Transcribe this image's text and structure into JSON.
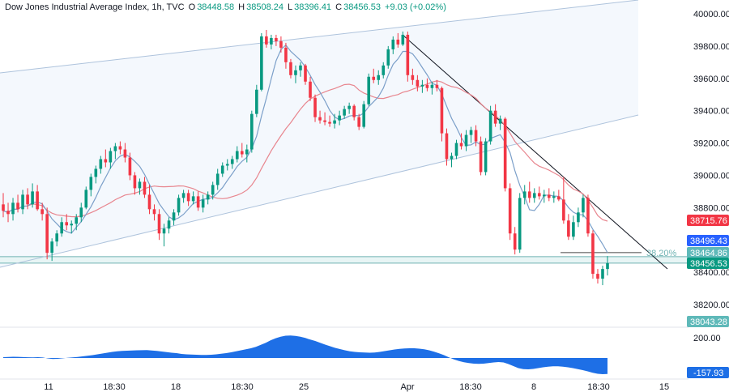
{
  "legend": {
    "symbol": "Dow Jones Industrial Average Index, 1h, TVC",
    "open_label": "O",
    "open": "38448.58",
    "high_label": "H",
    "high": "38508.24",
    "low_label": "L",
    "low": "38396.41",
    "close_label": "C",
    "close": "38456.53",
    "change": "+9.03 (+0.02%)"
  },
  "colors": {
    "up": "#089981",
    "down": "#f23645",
    "fast_ma": "#7b9fc9",
    "slow_ma": "#e8868f",
    "channel": "#aec3dc",
    "fib": "#6fb3b3",
    "histogram": "#1e6fe6"
  },
  "chart_data": {
    "type": "candlestick",
    "title": "Dow Jones Industrial Average Index, 1h, TVC",
    "x_tick_labels": [
      "11",
      "18:30",
      "18",
      "18:30",
      "25",
      "Apr",
      "18:30",
      "8",
      "18:30",
      "15"
    ],
    "y_tick_labels": [
      "40000.00",
      "39800.00",
      "39600.00",
      "39400.00",
      "39200.00",
      "39000.00",
      "38800.00",
      "38400.00",
      "38200.00"
    ],
    "ylim": [
      38000,
      40100
    ],
    "price_tags": [
      {
        "label": "38715.76",
        "value": 38715.76,
        "color": "#f23645"
      },
      {
        "label": "38496.43",
        "value": 38496.43,
        "color": "#2962ff"
      },
      {
        "label": "38464.86",
        "value": 38464.86,
        "color": "#5fb9b9"
      },
      {
        "label": "38456.53",
        "value": 38456.53,
        "color": "#089981"
      },
      {
        "label": "38043.28",
        "value": 38043.28,
        "color": "#5fb9b9"
      }
    ],
    "fib_level": {
      "label": "38.20%",
      "value": 38496.43
    },
    "zone": {
      "upper": 38496.43,
      "lower": 38456.53
    },
    "candles": [
      [
        38820,
        38890,
        38740,
        38780
      ],
      [
        38780,
        38830,
        38710,
        38760
      ],
      [
        38760,
        38860,
        38720,
        38830
      ],
      [
        38830,
        38880,
        38770,
        38790
      ],
      [
        38790,
        38910,
        38760,
        38880
      ],
      [
        38880,
        38920,
        38790,
        38820
      ],
      [
        38820,
        38950,
        38800,
        38900
      ],
      [
        38900,
        38940,
        38780,
        38790
      ],
      [
        38790,
        38830,
        38720,
        38760
      ],
      [
        38760,
        38800,
        38480,
        38520
      ],
      [
        38520,
        38610,
        38470,
        38590
      ],
      [
        38590,
        38660,
        38560,
        38640
      ],
      [
        38640,
        38740,
        38620,
        38710
      ],
      [
        38710,
        38760,
        38660,
        38690
      ],
      [
        38690,
        38720,
        38640,
        38700
      ],
      [
        38700,
        38760,
        38660,
        38740
      ],
      [
        38740,
        38830,
        38710,
        38800
      ],
      [
        38800,
        38930,
        38790,
        38910
      ],
      [
        38910,
        39010,
        38870,
        38990
      ],
      [
        38990,
        39060,
        38950,
        39040
      ],
      [
        39040,
        39120,
        39010,
        39100
      ],
      [
        39100,
        39160,
        39050,
        39080
      ],
      [
        39080,
        39170,
        39040,
        39150
      ],
      [
        39150,
        39200,
        39100,
        39180
      ],
      [
        39180,
        39210,
        39130,
        39160
      ],
      [
        39160,
        39200,
        39080,
        39110
      ],
      [
        39110,
        39140,
        38970,
        39000
      ],
      [
        39000,
        39020,
        38880,
        38920
      ],
      [
        38920,
        38980,
        38880,
        38960
      ],
      [
        38960,
        38990,
        38860,
        38880
      ],
      [
        38880,
        38940,
        38760,
        38790
      ],
      [
        38790,
        38820,
        38720,
        38760
      ],
      [
        38760,
        38790,
        38600,
        38640
      ],
      [
        38640,
        38700,
        38560,
        38670
      ],
      [
        38670,
        38740,
        38640,
        38720
      ],
      [
        38720,
        38790,
        38690,
        38770
      ],
      [
        38770,
        38880,
        38750,
        38860
      ],
      [
        38860,
        38910,
        38830,
        38890
      ],
      [
        38890,
        38910,
        38810,
        38840
      ],
      [
        38840,
        38900,
        38820,
        38870
      ],
      [
        38870,
        38900,
        38780,
        38800
      ],
      [
        38800,
        38880,
        38770,
        38850
      ],
      [
        38850,
        38900,
        38820,
        38880
      ],
      [
        38880,
        38960,
        38850,
        38940
      ],
      [
        38940,
        39040,
        38910,
        39010
      ],
      [
        39010,
        39080,
        38990,
        39060
      ],
      [
        39060,
        39100,
        39030,
        39070
      ],
      [
        39070,
        39120,
        39040,
        39100
      ],
      [
        39100,
        39180,
        39080,
        39150
      ],
      [
        39150,
        39200,
        39110,
        39130
      ],
      [
        39130,
        39190,
        39080,
        39160
      ],
      [
        39160,
        39400,
        39140,
        39380
      ],
      [
        39380,
        39560,
        39360,
        39530
      ],
      [
        39530,
        39880,
        39520,
        39860
      ],
      [
        39860,
        39900,
        39790,
        39810
      ],
      [
        39810,
        39870,
        39780,
        39850
      ],
      [
        39850,
        39870,
        39800,
        39830
      ],
      [
        39830,
        39860,
        39760,
        39790
      ],
      [
        39790,
        39820,
        39660,
        39700
      ],
      [
        39700,
        39720,
        39600,
        39620
      ],
      [
        39620,
        39680,
        39570,
        39650
      ],
      [
        39650,
        39700,
        39610,
        39680
      ],
      [
        39680,
        39690,
        39560,
        39580
      ],
      [
        39580,
        39610,
        39460,
        39480
      ],
      [
        39480,
        39500,
        39330,
        39360
      ],
      [
        39360,
        39400,
        39320,
        39340
      ],
      [
        39340,
        39390,
        39310,
        39330
      ],
      [
        39330,
        39370,
        39300,
        39320
      ],
      [
        39320,
        39380,
        39290,
        39340
      ],
      [
        39340,
        39400,
        39310,
        39370
      ],
      [
        39370,
        39430,
        39350,
        39410
      ],
      [
        39410,
        39450,
        39380,
        39430
      ],
      [
        39430,
        39440,
        39340,
        39360
      ],
      [
        39360,
        39380,
        39280,
        39300
      ],
      [
        39300,
        39460,
        39290,
        39440
      ],
      [
        39440,
        39630,
        39430,
        39610
      ],
      [
        39610,
        39660,
        39570,
        39590
      ],
      [
        39590,
        39650,
        39560,
        39620
      ],
      [
        39620,
        39700,
        39600,
        39680
      ],
      [
        39680,
        39800,
        39660,
        39780
      ],
      [
        39780,
        39860,
        39750,
        39840
      ],
      [
        39840,
        39880,
        39790,
        39810
      ],
      [
        39810,
        39890,
        39800,
        39870
      ],
      [
        39870,
        39890,
        39580,
        39620
      ],
      [
        39620,
        39660,
        39560,
        39590
      ],
      [
        39590,
        39620,
        39520,
        39550
      ],
      [
        39550,
        39590,
        39510,
        39560
      ],
      [
        39560,
        39600,
        39520,
        39540
      ],
      [
        39540,
        39580,
        39500,
        39560
      ],
      [
        39560,
        39590,
        39520,
        39540
      ],
      [
        39540,
        39550,
        39210,
        39260
      ],
      [
        39260,
        39290,
        39060,
        39100
      ],
      [
        39100,
        39140,
        39050,
        39120
      ],
      [
        39120,
        39220,
        39100,
        39200
      ],
      [
        39200,
        39260,
        39160,
        39180
      ],
      [
        39180,
        39280,
        39150,
        39250
      ],
      [
        39250,
        39300,
        39200,
        39280
      ],
      [
        39280,
        39310,
        39180,
        39210
      ],
      [
        39210,
        39240,
        39000,
        39020
      ],
      [
        39020,
        39230,
        39000,
        39210
      ],
      [
        39210,
        39430,
        39190,
        39400
      ],
      [
        39400,
        39440,
        39300,
        39320
      ],
      [
        39320,
        39370,
        39280,
        39350
      ],
      [
        39350,
        39360,
        38900,
        38920
      ],
      [
        38920,
        38950,
        38600,
        38640
      ],
      [
        38640,
        38680,
        38510,
        38540
      ],
      [
        38540,
        38890,
        38520,
        38860
      ],
      [
        38860,
        38940,
        38820,
        38900
      ],
      [
        38900,
        38960,
        38830,
        38860
      ],
      [
        38860,
        38920,
        38830,
        38890
      ],
      [
        38890,
        38930,
        38850,
        38870
      ],
      [
        38870,
        38910,
        38830,
        38880
      ],
      [
        38880,
        38920,
        38840,
        38860
      ],
      [
        38860,
        38900,
        38830,
        38870
      ],
      [
        38870,
        38910,
        38840,
        38850
      ],
      [
        38850,
        38990,
        38700,
        38720
      ],
      [
        38720,
        38760,
        38600,
        38620
      ],
      [
        38620,
        38750,
        38600,
        38710
      ],
      [
        38710,
        38800,
        38680,
        38770
      ],
      [
        38770,
        38880,
        38740,
        38860
      ],
      [
        38860,
        38880,
        38620,
        38640
      ],
      [
        38640,
        38660,
        38360,
        38390
      ],
      [
        38390,
        38420,
        38330,
        38360
      ],
      [
        38360,
        38440,
        38320,
        38420
      ],
      [
        38420,
        38500,
        38380,
        38456
      ]
    ],
    "oscillator": {
      "name": "",
      "y_tick_labels": [
        "200.00"
      ],
      "current_label": "-157.93",
      "current": -157.93,
      "ylim": [
        -260,
        290
      ],
      "values": [
        8,
        10,
        12,
        11,
        9,
        7,
        6,
        8,
        5,
        -4,
        -10,
        -8,
        -3,
        2,
        6,
        10,
        16,
        22,
        28,
        36,
        44,
        52,
        60,
        66,
        70,
        72,
        74,
        76,
        77,
        78,
        74,
        70,
        64,
        58,
        52,
        48,
        40,
        36,
        34,
        32,
        30,
        30,
        32,
        36,
        42,
        48,
        56,
        66,
        76,
        86,
        96,
        110,
        130,
        150,
        175,
        195,
        210,
        220,
        222,
        218,
        210,
        198,
        182,
        168,
        150,
        132,
        116,
        100,
        88,
        76,
        66,
        60,
        56,
        54,
        52,
        54,
        60,
        68,
        76,
        84,
        90,
        94,
        96,
        96,
        92,
        86,
        76,
        62,
        46,
        28,
        6,
        -14,
        -30,
        -42,
        -50,
        -56,
        -58,
        -56,
        -50,
        -44,
        -40,
        -44,
        -60,
        -80,
        -100,
        -110,
        -112,
        -108,
        -100,
        -92,
        -86,
        -82,
        -82,
        -86,
        -92,
        -100,
        -110,
        -120,
        -132,
        -146,
        -156,
        -160,
        -158
      ]
    }
  }
}
